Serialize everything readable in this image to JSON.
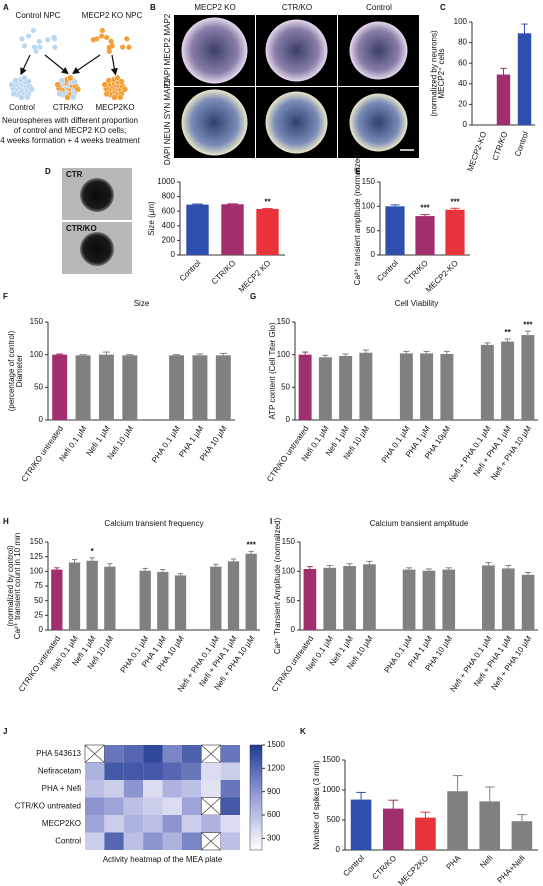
{
  "figure": {
    "panel_labels": [
      "A",
      "B",
      "C",
      "D",
      "E",
      "F",
      "G",
      "H",
      "I",
      "J",
      "K"
    ],
    "diagram": {
      "sources": [
        "Control NPC",
        "MECP2 KO NPC"
      ],
      "spheres": [
        "Control",
        "CTR/KO",
        "MECP2KO"
      ],
      "caption": [
        "Neurospheres with different proportion",
        "of control and MECP2 KO cells;",
        "4 weeks formation + 4 weeks treatment"
      ]
    },
    "staining": {
      "columns": [
        "MECP2 KO",
        "CTR/KO",
        "Control"
      ],
      "rows": [
        "DAPI MECP2 MAP2",
        "DAPI NEUN SYN MAP2"
      ]
    },
    "brightfield": [
      "CTR",
      "CTR/KO"
    ]
  },
  "chart_data": [
    {
      "type": "bar",
      "ylabel": [
        "MECP2⁺ cells",
        "(normalized by neurons)"
      ],
      "categories": [
        "MECP2-KO",
        "CTR/KO",
        "Control"
      ],
      "values": [
        0,
        49,
        89
      ],
      "errors": [
        null,
        6,
        9
      ],
      "colors": [
        "#2e4fae",
        "#a12f6d",
        "#2e4fae"
      ],
      "ylim": [
        0,
        100
      ],
      "yticks": [
        0,
        20,
        40,
        60,
        80,
        100
      ]
    },
    {
      "type": "bar",
      "ylabel": "Size (µm)",
      "categories": [
        "Control",
        "CTR/KO",
        "MECP2 KO"
      ],
      "values": [
        690,
        695,
        630
      ],
      "errors": [
        8,
        6,
        8
      ],
      "colors": [
        "#2e4fae",
        "#a12f6d",
        "#e8333a"
      ],
      "ylim": [
        0,
        1000
      ],
      "yticks": [
        0,
        200,
        400,
        600,
        800,
        1000
      ],
      "significance": [
        null,
        null,
        "**"
      ]
    },
    {
      "type": "bar",
      "ylabel": "Ca²⁺ transient amplitude (normalized)",
      "categories": [
        "Control",
        "CTR/KO",
        "MECP2-KO"
      ],
      "values": [
        100,
        80,
        93
      ],
      "errors": [
        3,
        3,
        3
      ],
      "colors": [
        "#2e4fae",
        "#a12f6d",
        "#e8333a"
      ],
      "ylim": [
        0,
        150
      ],
      "yticks": [
        0,
        50,
        100,
        150
      ],
      "significance": [
        null,
        "***",
        "***"
      ]
    },
    {
      "type": "bar",
      "title": "Size",
      "ylabel": [
        "Diameter",
        "(percentage of control)"
      ],
      "categories": [
        "CTR/KO untreated",
        "Nefi 0.1  µM",
        "Nefi 1  µM",
        "Nefi 10  µM",
        null,
        "PHA 0.1  µM",
        "PHA 1  µM",
        "PHA 10  µM"
      ],
      "values": [
        100,
        99,
        100,
        99,
        null,
        99,
        99,
        99
      ],
      "errors": [
        1,
        1,
        4,
        1,
        null,
        1,
        2,
        3
      ],
      "colors": [
        "#a12f6d",
        "#808080",
        "#808080",
        "#808080",
        null,
        "#808080",
        "#808080",
        "#808080"
      ],
      "ylim": [
        0,
        150
      ],
      "yticks": [
        0,
        50,
        100,
        150
      ]
    },
    {
      "type": "bar",
      "title": "Cell Viability",
      "ylabel": "ATP content (Cell Titer Glo)",
      "categories": [
        "CTR/KO untreated",
        "Nefi 0.1  µM",
        "Nefi 1  µM",
        "Nefi 10  µM",
        null,
        "PHA 0.1  µM",
        "PHA 1  µM",
        "PHA 10µM",
        null,
        "Nefi + PHA 0.1  µM",
        "Nefi + PHA 1  µM",
        "Nefi + PHA 10  µM"
      ],
      "values": [
        100,
        96,
        98,
        103,
        null,
        102,
        102,
        101,
        null,
        115,
        120,
        130
      ],
      "errors": [
        4,
        3,
        3,
        4,
        null,
        3,
        3,
        4,
        null,
        3,
        4,
        6
      ],
      "colors": [
        "#a12f6d",
        "#808080",
        "#808080",
        "#808080",
        null,
        "#808080",
        "#808080",
        "#808080",
        null,
        "#808080",
        "#808080",
        "#808080"
      ],
      "ylim": [
        0,
        150
      ],
      "yticks": [
        0,
        50,
        100,
        150
      ],
      "significance": [
        null,
        null,
        null,
        null,
        null,
        null,
        null,
        null,
        null,
        null,
        "**",
        "***"
      ]
    },
    {
      "type": "bar",
      "title": "Calcium transient frequency",
      "ylabel": [
        "Ca²⁺ transient count in 10 min",
        "(normalized by control)"
      ],
      "categories": [
        "CTR/KO untreated",
        "Nefi 0.1  µM",
        "Nefi 1  µM",
        "Nefi 10  µM",
        null,
        "PHA 0.1  µM",
        "PHA 1  µM",
        "PHA 10  µM",
        null,
        "Nefi + PHA 0.1  µM",
        "Nefi + PHA 1  µM",
        "Nefi + PHA 10  µM"
      ],
      "values": [
        103,
        115,
        118,
        108,
        null,
        101,
        99,
        93,
        null,
        108,
        117,
        130
      ],
      "errors": [
        3,
        5,
        5,
        5,
        null,
        4,
        4,
        3,
        null,
        4,
        4,
        4
      ],
      "colors": [
        "#a12f6d",
        "#808080",
        "#808080",
        "#808080",
        null,
        "#808080",
        "#808080",
        "#808080",
        null,
        "#808080",
        "#808080",
        "#808080"
      ],
      "ylim": [
        0,
        150
      ],
      "yticks": [
        0,
        25,
        50,
        75,
        100,
        125,
        150
      ],
      "significance": [
        null,
        null,
        "*",
        null,
        null,
        null,
        null,
        null,
        null,
        null,
        null,
        "***"
      ]
    },
    {
      "type": "bar",
      "title": "Calcium transient amplitude",
      "ylabel": "Ca²⁺ Transient Amplitude (normalized)",
      "categories": [
        "CTR/KO untreated",
        "Nefi 0.1  µM",
        "Nefi 1  µM",
        "Nefi 10  µM",
        null,
        "PHA 0.1  µM",
        "PHA 1  µM",
        "PHA 10  µM",
        null,
        "Nefi + PHA 0.1  µM",
        "Nefi + PHA 1  µM",
        "Nefi + PHA 10  µM"
      ],
      "values": [
        104,
        106,
        109,
        112,
        null,
        103,
        101,
        103,
        null,
        110,
        105,
        94
      ],
      "errors": [
        4,
        4,
        4,
        5,
        null,
        3,
        3,
        3,
        null,
        5,
        5,
        4
      ],
      "colors": [
        "#a12f6d",
        "#808080",
        "#808080",
        "#808080",
        null,
        "#808080",
        "#808080",
        "#808080",
        null,
        "#808080",
        "#808080",
        "#808080"
      ],
      "ylim": [
        0,
        150
      ],
      "yticks": [
        0,
        50,
        100,
        150
      ]
    },
    {
      "type": "heatmap",
      "caption": "Activity heatmap of the MEA plate",
      "rows": [
        "PHA 543613",
        "Nefiracetam",
        "PHA + Nefi",
        "CTR/KO untreated",
        "MECP2KO",
        "Control"
      ],
      "values": [
        [
          null,
          1100,
          1200,
          1400,
          1000,
          1250,
          null,
          1100
        ],
        [
          700,
          1300,
          1300,
          1300,
          1200,
          1100,
          400,
          500
        ],
        [
          600,
          500,
          900,
          400,
          700,
          600,
          350,
          1100
        ],
        [
          900,
          800,
          600,
          500,
          400,
          800,
          null,
          1300
        ],
        [
          800,
          500,
          700,
          600,
          900,
          500,
          700,
          400
        ],
        [
          500,
          1200,
          600,
          900,
          700,
          1000,
          null,
          600
        ]
      ],
      "colors": [
        "#ffffff",
        "#9aa0d8",
        "#1f3a93"
      ],
      "clim": [
        150,
        1500
      ],
      "cticks": [
        300,
        600,
        900,
        1200,
        1500
      ]
    },
    {
      "type": "bar",
      "ylabel": "Number of spikes (3 min)",
      "categories": [
        "Control",
        "CTR/KO",
        "MECP2KO",
        "PHA",
        "Nefi",
        "PHA+Nefi"
      ],
      "values": [
        840,
        690,
        540,
        980,
        810,
        480
      ],
      "errors": [
        120,
        140,
        90,
        260,
        240,
        110
      ],
      "colors": [
        "#2e4fae",
        "#a12f6d",
        "#e8333a",
        "#808080",
        "#808080",
        "#808080"
      ],
      "ylim": [
        0,
        1500
      ],
      "yticks": [
        0,
        500,
        1000,
        1500
      ]
    }
  ]
}
